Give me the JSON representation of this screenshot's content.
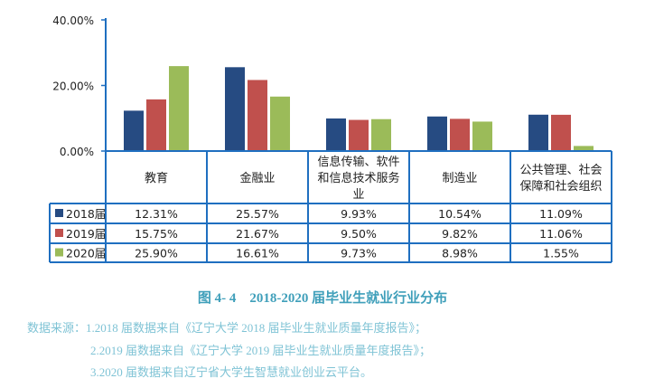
{
  "chart_data": {
    "type": "bar",
    "categories": [
      "教育",
      "金融业",
      "信息传输、软件和信息技术服务业",
      "制造业",
      "公共管理、社会保障和社会组织"
    ],
    "category_lines": [
      [
        "教育"
      ],
      [
        "金融业"
      ],
      [
        "信息传输、软件",
        "和信息技术服务",
        "业"
      ],
      [
        "制造业"
      ],
      [
        "公共管理、社会",
        "保障和社会组织"
      ]
    ],
    "series": [
      {
        "name": "2018届",
        "color": "#264b82",
        "values": [
          12.31,
          25.57,
          9.93,
          10.54,
          11.09
        ],
        "labels": [
          "12.31%",
          "25.57%",
          "9.93%",
          "10.54%",
          "11.09%"
        ]
      },
      {
        "name": "2019届",
        "color": "#c0504d",
        "values": [
          15.75,
          21.67,
          9.5,
          9.82,
          11.06
        ],
        "labels": [
          "15.75%",
          "21.67%",
          "9.50%",
          "9.82%",
          "11.06%"
        ]
      },
      {
        "name": "2020届",
        "color": "#9bbb59",
        "values": [
          25.9,
          16.61,
          9.73,
          8.98,
          1.55
        ],
        "labels": [
          "25.90%",
          "16.61%",
          "9.73%",
          "8.98%",
          "1.55%"
        ]
      }
    ],
    "ylim": [
      0,
      40
    ],
    "yticks": [
      "0.00%",
      "20.00%",
      "40.00%"
    ],
    "yticks_values": [
      0,
      20,
      40
    ],
    "grid": false,
    "legend": "data-table"
  },
  "caption": "图 4- 4　2018-2020 届毕业生就业行业分布",
  "source": [
    "数据来源：1.2018 届数据来自《辽宁大学 2018 届毕业生就业质量年度报告》；",
    "2.2019 届数据来自《辽宁大学 2019 届毕业生就业质量年度报告》；",
    "3.2020 届数据来自辽宁省大学生智慧就业创业云平台。"
  ]
}
